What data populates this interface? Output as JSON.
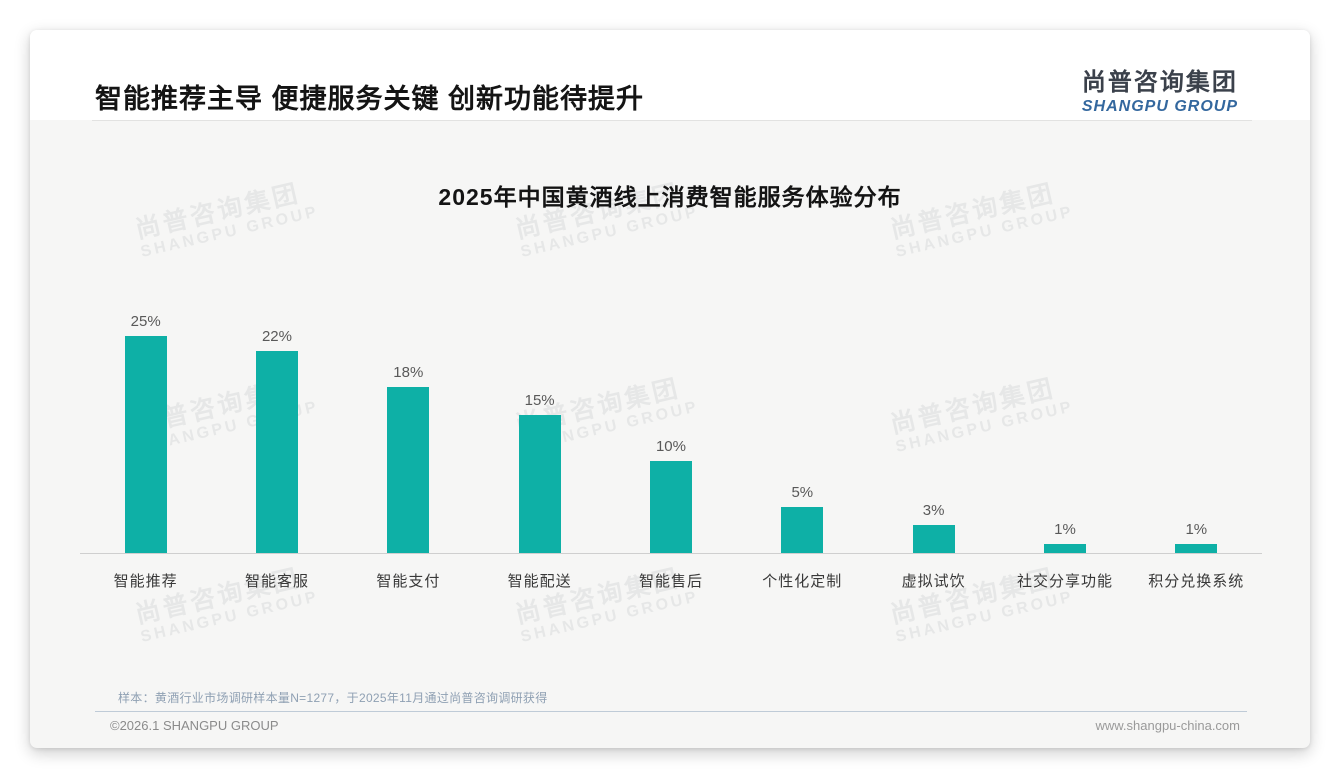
{
  "header": {
    "title": "智能推荐主导 便捷服务关键 创新功能待提升",
    "logo_cn": "尚普咨询集团",
    "logo_en": "SHANGPU GROUP"
  },
  "watermark": {
    "cn": "尚普咨询集团",
    "en": "SHANGPU GROUP"
  },
  "chart_data": {
    "type": "bar",
    "title": "2025年中国黄酒线上消费智能服务体验分布",
    "categories": [
      "智能推荐",
      "智能客服",
      "智能支付",
      "智能配送",
      "智能售后",
      "个性化定制",
      "虚拟试饮",
      "社交分享功能",
      "积分兑换系统"
    ],
    "values": [
      25,
      22,
      18,
      15,
      10,
      5,
      3,
      1,
      1
    ],
    "value_labels": [
      "25%",
      "22%",
      "18%",
      "15%",
      "10%",
      "5%",
      "3%",
      "1%",
      "1%"
    ],
    "unit": "%",
    "ylim": [
      0,
      26
    ],
    "grid": false,
    "legend": false,
    "bar_color": "#0eb0a6"
  },
  "note": "样本：黄酒行业市场调研样本量N=1277，于2025年11月通过尚普咨询调研获得",
  "footer": {
    "left": "©2026.1 SHANGPU GROUP",
    "right": "www.shangpu-china.com"
  },
  "colors": {
    "bar": "#0eb0a6",
    "logo_blue": "#33679e",
    "note_text": "#8fa0b3",
    "card_bg": "#f6f6f5"
  }
}
